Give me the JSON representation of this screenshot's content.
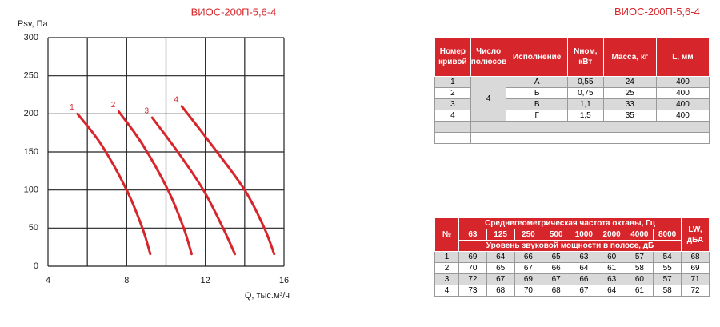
{
  "chart_data": {
    "type": "line",
    "title": "ВИОС-200П-5,6-4",
    "ylabel": "Psv, Па",
    "xlabel": "Q, тыс.м³/ч",
    "xlim": [
      4,
      16
    ],
    "xticks": [
      4,
      8,
      12,
      16
    ],
    "xgrid": [
      4,
      6,
      8,
      10,
      12,
      14,
      16
    ],
    "ylim": [
      0,
      300
    ],
    "yticks": [
      0,
      50,
      100,
      150,
      200,
      250,
      300
    ],
    "grid": true,
    "color": "#d7262b",
    "series": [
      {
        "name": "1",
        "x": [
          5.5,
          6.7,
          8.0,
          8.8,
          9.2
        ],
        "values": [
          200,
          160,
          100,
          50,
          16
        ]
      },
      {
        "name": "2",
        "x": [
          7.6,
          8.8,
          10.1,
          10.9,
          11.3
        ],
        "values": [
          203,
          160,
          100,
          50,
          16
        ]
      },
      {
        "name": "3",
        "x": [
          9.3,
          10.6,
          11.9,
          12.9,
          13.5
        ],
        "values": [
          195,
          150,
          100,
          50,
          16
        ]
      },
      {
        "name": "4",
        "x": [
          10.8,
          12.3,
          14.0,
          15.0,
          15.5
        ],
        "values": [
          210,
          160,
          100,
          50,
          16
        ]
      }
    ]
  },
  "table1": {
    "title": "ВИОС-200П-5,6-4",
    "header": [
      "Номер кривой",
      "Число полюсов",
      "Исполнение",
      "Nном, кВт",
      "Масса, кг",
      "L, мм"
    ],
    "poles": "4",
    "rows": [
      [
        "1",
        "А",
        "0,55",
        "24",
        "400"
      ],
      [
        "2",
        "Б",
        "0,75",
        "25",
        "400"
      ],
      [
        "3",
        "В",
        "1,1",
        "33",
        "400"
      ],
      [
        "4",
        "Г",
        "1,5",
        "35",
        "400"
      ]
    ]
  },
  "table2": {
    "no": "№",
    "freq_title": "Среднегеометрическая частота октавы, Гц",
    "freqs": [
      "63",
      "125",
      "250",
      "500",
      "1000",
      "2000",
      "4000",
      "8000"
    ],
    "level_title": "Уровень звуковой мощности в полосе, дБ",
    "lw": "LW, дБА",
    "rows": [
      [
        "1",
        "69",
        "64",
        "66",
        "65",
        "63",
        "60",
        "57",
        "54",
        "68"
      ],
      [
        "2",
        "70",
        "65",
        "67",
        "66",
        "64",
        "61",
        "58",
        "55",
        "69"
      ],
      [
        "3",
        "72",
        "67",
        "69",
        "67",
        "66",
        "63",
        "60",
        "57",
        "71"
      ],
      [
        "4",
        "73",
        "68",
        "70",
        "68",
        "67",
        "64",
        "61",
        "58",
        "72"
      ]
    ]
  }
}
